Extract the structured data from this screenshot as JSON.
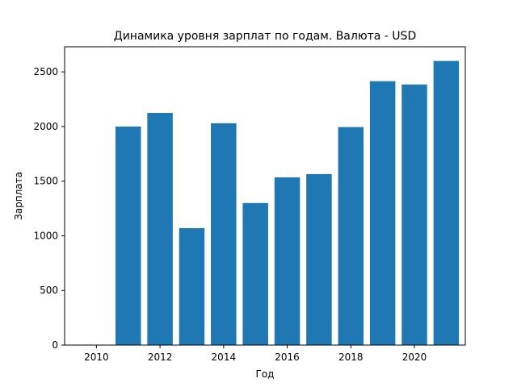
{
  "chart_data": {
    "type": "bar",
    "title": "Динамика уровня зарплат по годам. Валюта - USD",
    "xlabel": "Год",
    "ylabel": "Зарплата",
    "categories": [
      2011,
      2012,
      2013,
      2014,
      2015,
      2016,
      2017,
      2018,
      2019,
      2020,
      2021
    ],
    "values": [
      2000,
      2125,
      1070,
      2030,
      1300,
      1535,
      1565,
      1995,
      2415,
      2385,
      2600
    ],
    "xlim": [
      2009.0,
      2021.6
    ],
    "ylim": [
      0,
      2730
    ],
    "xticks": [
      2010,
      2012,
      2014,
      2016,
      2018,
      2020
    ],
    "yticks": [
      0,
      500,
      1000,
      1500,
      2000,
      2500
    ],
    "bar_color": "#1f77b4",
    "grid": false,
    "legend": "none"
  }
}
